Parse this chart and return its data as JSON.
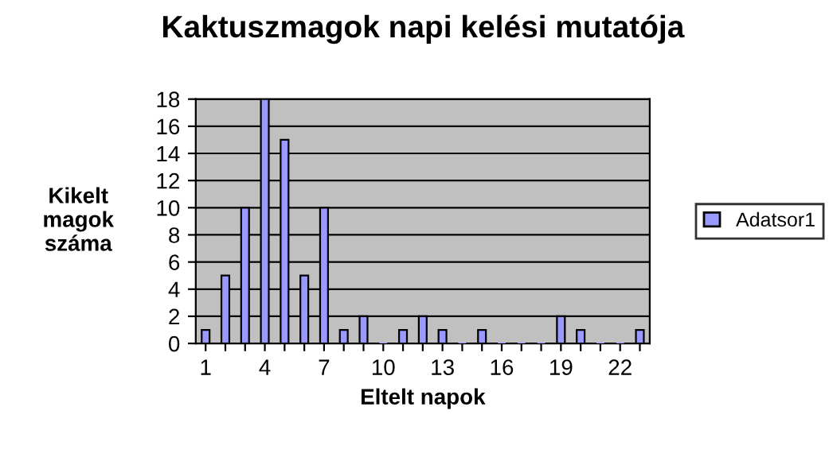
{
  "chart_data": {
    "type": "bar",
    "title": "Kaktuszmagok napi kelési mutatója",
    "xlabel": "Eltelt napok",
    "ylabel": "Kikelt\nmagok\nszáma",
    "categories": [
      "1",
      null,
      null,
      "4",
      null,
      null,
      "7",
      null,
      null,
      "10",
      null,
      null,
      "13",
      null,
      null,
      "16",
      null,
      null,
      "19",
      null,
      null,
      "22",
      null
    ],
    "series": [
      {
        "name": "Adatsor1",
        "color": "#9999ff",
        "values": [
          1,
          5,
          10,
          18,
          15,
          5,
          10,
          1,
          2,
          0,
          1,
          2,
          1,
          0,
          1,
          0,
          0,
          0,
          2,
          1,
          0,
          0,
          1
        ]
      }
    ],
    "ylim": [
      0,
      18
    ],
    "yticks": [
      0,
      2,
      4,
      6,
      8,
      10,
      12,
      14,
      16,
      18
    ],
    "grid": "y",
    "legend": "right"
  }
}
